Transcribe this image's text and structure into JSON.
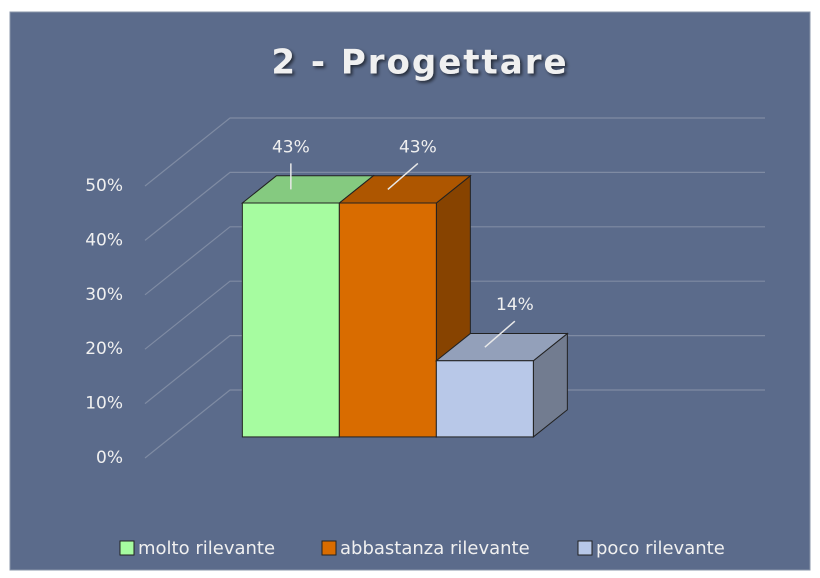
{
  "chart_data": {
    "type": "bar3d",
    "title": "2 - Progettare",
    "categories": [
      "molto rilevante",
      "abbastanza rilevante",
      "poco rilevante"
    ],
    "values": [
      43,
      43,
      14
    ],
    "value_labels": [
      "43%",
      "43%",
      "14%"
    ],
    "colors": [
      "#a6fca0",
      "#d96c00",
      "#b8c8e8"
    ],
    "ylim": [
      0,
      50
    ],
    "yticks": [
      {
        "value": 0,
        "label": "0%"
      },
      {
        "value": 10,
        "label": "10%"
      },
      {
        "value": 20,
        "label": "20%"
      },
      {
        "value": 30,
        "label": "30%"
      },
      {
        "value": 40,
        "label": "40%"
      },
      {
        "value": 50,
        "label": "50%"
      }
    ],
    "grid": true,
    "legend": "bottom"
  }
}
